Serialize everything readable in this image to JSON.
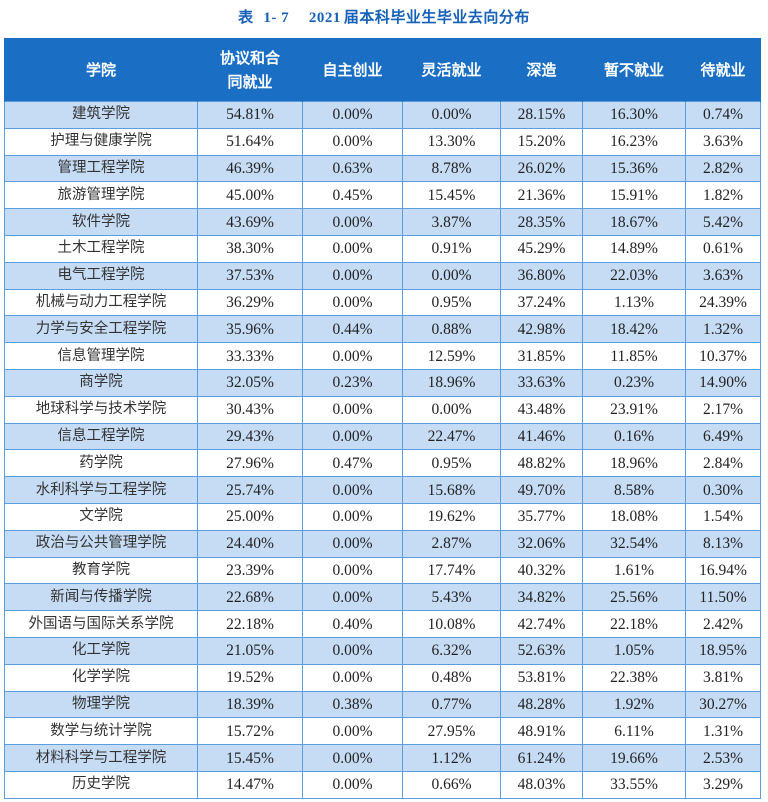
{
  "title": {
    "prefix": "表",
    "number": "1- 7",
    "year": "2021",
    "text": "届本科毕业生毕业去向分布"
  },
  "table": {
    "headers": [
      "学院",
      "协议和合同就业",
      "自主创业",
      "灵活就业",
      "深造",
      "暂不就业",
      "待就业"
    ],
    "header_lines": {
      "col2_line1": "协议和合",
      "col2_line2": "同就业"
    },
    "rows": [
      [
        "建筑学院",
        "54.81%",
        "0.00%",
        "0.00%",
        "28.15%",
        "16.30%",
        "0.74%"
      ],
      [
        "护理与健康学院",
        "51.64%",
        "0.00%",
        "13.30%",
        "15.20%",
        "16.23%",
        "3.63%"
      ],
      [
        "管理工程学院",
        "46.39%",
        "0.63%",
        "8.78%",
        "26.02%",
        "15.36%",
        "2.82%"
      ],
      [
        "旅游管理学院",
        "45.00%",
        "0.45%",
        "15.45%",
        "21.36%",
        "15.91%",
        "1.82%"
      ],
      [
        "软件学院",
        "43.69%",
        "0.00%",
        "3.87%",
        "28.35%",
        "18.67%",
        "5.42%"
      ],
      [
        "土木工程学院",
        "38.30%",
        "0.00%",
        "0.91%",
        "45.29%",
        "14.89%",
        "0.61%"
      ],
      [
        "电气工程学院",
        "37.53%",
        "0.00%",
        "0.00%",
        "36.80%",
        "22.03%",
        "3.63%"
      ],
      [
        "机械与动力工程学院",
        "36.29%",
        "0.00%",
        "0.95%",
        "37.24%",
        "1.13%",
        "24.39%"
      ],
      [
        "力学与安全工程学院",
        "35.96%",
        "0.44%",
        "0.88%",
        "42.98%",
        "18.42%",
        "1.32%"
      ],
      [
        "信息管理学院",
        "33.33%",
        "0.00%",
        "12.59%",
        "31.85%",
        "11.85%",
        "10.37%"
      ],
      [
        "商学院",
        "32.05%",
        "0.23%",
        "18.96%",
        "33.63%",
        "0.23%",
        "14.90%"
      ],
      [
        "地球科学与技术学院",
        "30.43%",
        "0.00%",
        "0.00%",
        "43.48%",
        "23.91%",
        "2.17%"
      ],
      [
        "信息工程学院",
        "29.43%",
        "0.00%",
        "22.47%",
        "41.46%",
        "0.16%",
        "6.49%"
      ],
      [
        "药学院",
        "27.96%",
        "0.47%",
        "0.95%",
        "48.82%",
        "18.96%",
        "2.84%"
      ],
      [
        "水利科学与工程学院",
        "25.74%",
        "0.00%",
        "15.68%",
        "49.70%",
        "8.58%",
        "0.30%"
      ],
      [
        "文学院",
        "25.00%",
        "0.00%",
        "19.62%",
        "35.77%",
        "18.08%",
        "1.54%"
      ],
      [
        "政治与公共管理学院",
        "24.40%",
        "0.00%",
        "2.87%",
        "32.06%",
        "32.54%",
        "8.13%"
      ],
      [
        "教育学院",
        "23.39%",
        "0.00%",
        "17.74%",
        "40.32%",
        "1.61%",
        "16.94%"
      ],
      [
        "新闻与传播学院",
        "22.68%",
        "0.00%",
        "5.43%",
        "34.82%",
        "25.56%",
        "11.50%"
      ],
      [
        "外国语与国际关系学院",
        "22.18%",
        "0.40%",
        "10.08%",
        "42.74%",
        "22.18%",
        "2.42%"
      ],
      [
        "化工学院",
        "21.05%",
        "0.00%",
        "6.32%",
        "52.63%",
        "1.05%",
        "18.95%"
      ],
      [
        "化学学院",
        "19.52%",
        "0.00%",
        "0.48%",
        "53.81%",
        "22.38%",
        "3.81%"
      ],
      [
        "物理学院",
        "18.39%",
        "0.38%",
        "0.77%",
        "48.28%",
        "1.92%",
        "30.27%"
      ],
      [
        "数学与统计学院",
        "15.72%",
        "0.00%",
        "27.95%",
        "48.91%",
        "6.11%",
        "1.31%"
      ],
      [
        "材料科学与工程学院",
        "15.45%",
        "0.00%",
        "1.12%",
        "61.24%",
        "19.66%",
        "2.53%"
      ],
      [
        "历史学院",
        "14.47%",
        "0.00%",
        "0.66%",
        "48.03%",
        "33.55%",
        "3.29%"
      ]
    ]
  },
  "colors": {
    "title": "#1560b8",
    "header_bg": "#1a6fc5",
    "stripe_bg": "#c6dcf5",
    "border": "#5a9ee0"
  }
}
